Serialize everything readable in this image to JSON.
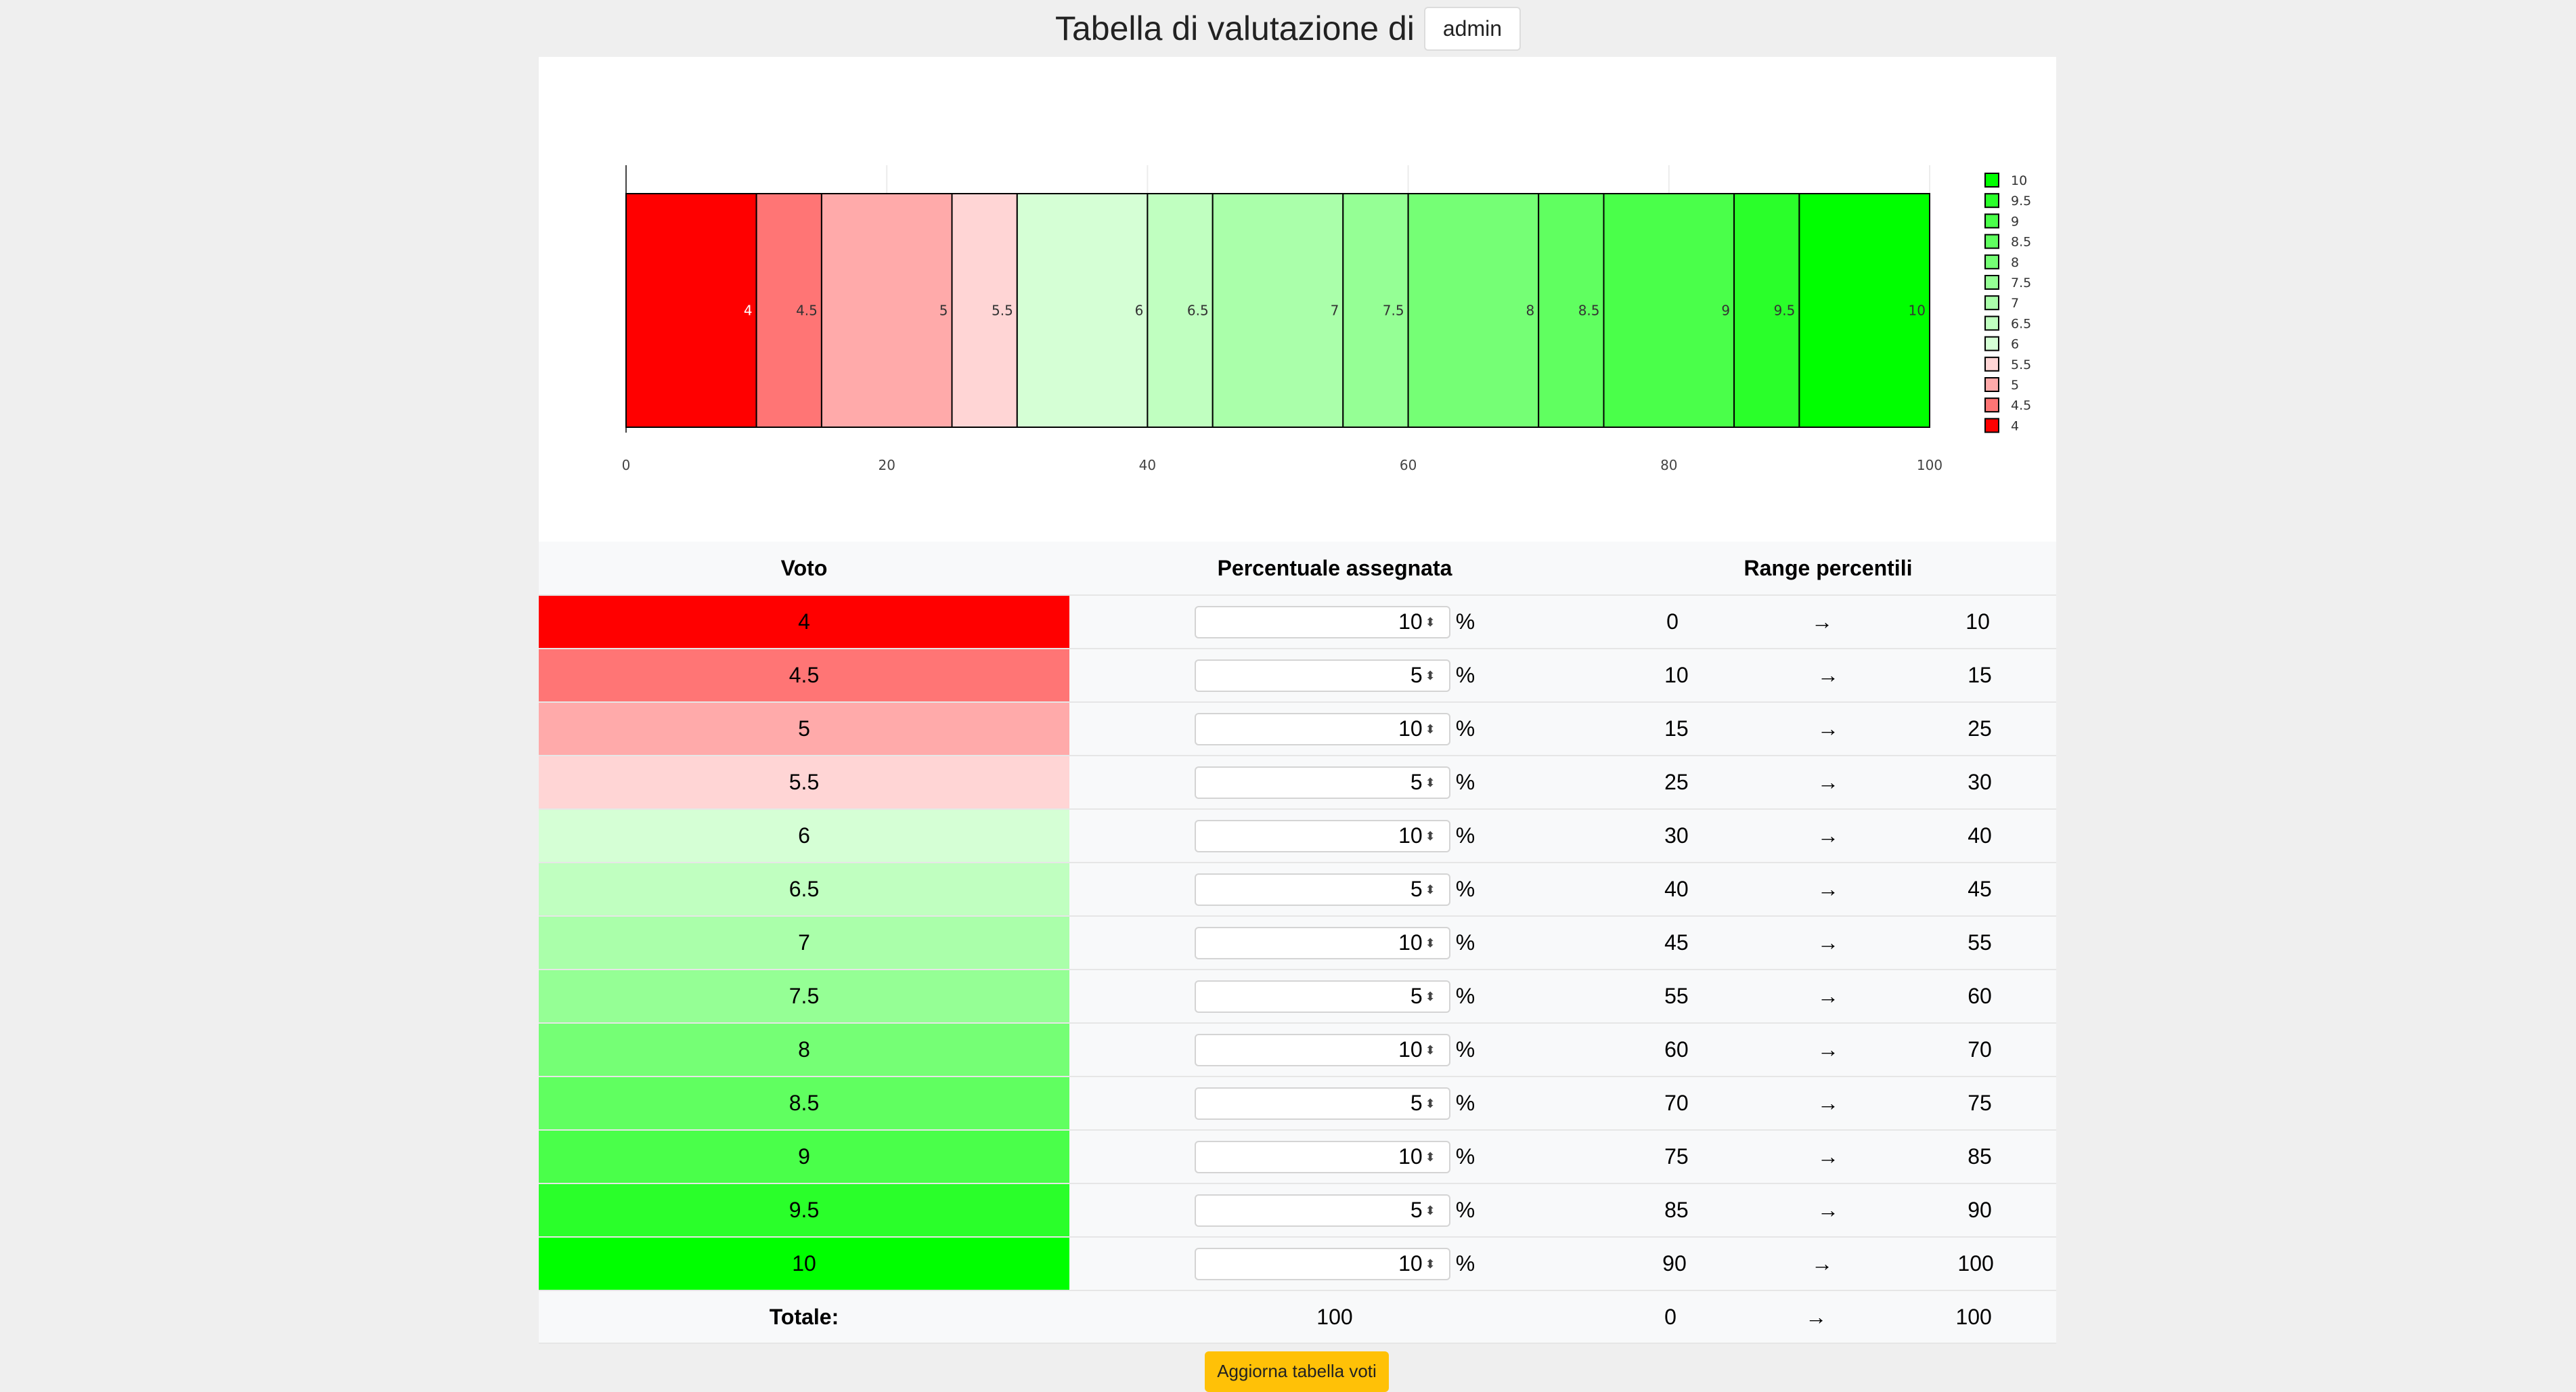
{
  "header": {
    "title": "Tabella di valutazione di",
    "user": "admin"
  },
  "chart_data": {
    "type": "bar",
    "orientation": "horizontal-stacked",
    "series": [
      {
        "name": "4",
        "value": 10,
        "color": "#ff0000"
      },
      {
        "name": "4.5",
        "value": 5,
        "color": "#ff7575"
      },
      {
        "name": "5",
        "value": 10,
        "color": "#ffaaaa"
      },
      {
        "name": "5.5",
        "value": 5,
        "color": "#ffd5d5"
      },
      {
        "name": "6",
        "value": 10,
        "color": "#d5ffd5"
      },
      {
        "name": "6.5",
        "value": 5,
        "color": "#c0ffc0"
      },
      {
        "name": "7",
        "value": 10,
        "color": "#aaffaa"
      },
      {
        "name": "7.5",
        "value": 5,
        "color": "#95ff95"
      },
      {
        "name": "8",
        "value": 10,
        "color": "#75ff75"
      },
      {
        "name": "8.5",
        "value": 5,
        "color": "#60ff60"
      },
      {
        "name": "9",
        "value": 10,
        "color": "#4aff4a"
      },
      {
        "name": "9.5",
        "value": 5,
        "color": "#2aff2a"
      },
      {
        "name": "10",
        "value": 10,
        "color": "#00ff00"
      }
    ],
    "xlim": [
      0,
      100
    ],
    "xticks": [
      "0",
      "20",
      "40",
      "60",
      "80",
      "100"
    ],
    "legend": "right",
    "grid": true
  },
  "table": {
    "headers": {
      "voto": "Voto",
      "percentuale": "Percentuale assegnata",
      "range": "Range percentili"
    },
    "arrow": "→",
    "percent_sign": "%",
    "rows": [
      {
        "voto": "4",
        "pct": "10",
        "from": "0",
        "to": "10",
        "color": "#ff0000"
      },
      {
        "voto": "4.5",
        "pct": "5",
        "from": "10",
        "to": "15",
        "color": "#ff7575"
      },
      {
        "voto": "5",
        "pct": "10",
        "from": "15",
        "to": "25",
        "color": "#ffaaaa"
      },
      {
        "voto": "5.5",
        "pct": "5",
        "from": "25",
        "to": "30",
        "color": "#ffd5d5"
      },
      {
        "voto": "6",
        "pct": "10",
        "from": "30",
        "to": "40",
        "color": "#d5ffd5"
      },
      {
        "voto": "6.5",
        "pct": "5",
        "from": "40",
        "to": "45",
        "color": "#c0ffc0"
      },
      {
        "voto": "7",
        "pct": "10",
        "from": "45",
        "to": "55",
        "color": "#aaffaa"
      },
      {
        "voto": "7.5",
        "pct": "5",
        "from": "55",
        "to": "60",
        "color": "#95ff95"
      },
      {
        "voto": "8",
        "pct": "10",
        "from": "60",
        "to": "70",
        "color": "#75ff75"
      },
      {
        "voto": "8.5",
        "pct": "5",
        "from": "70",
        "to": "75",
        "color": "#60ff60"
      },
      {
        "voto": "9",
        "pct": "10",
        "from": "75",
        "to": "85",
        "color": "#4aff4a"
      },
      {
        "voto": "9.5",
        "pct": "5",
        "from": "85",
        "to": "90",
        "color": "#2aff2a"
      },
      {
        "voto": "10",
        "pct": "10",
        "from": "90",
        "to": "100",
        "color": "#00ff00"
      }
    ],
    "total": {
      "label": "Totale:",
      "pct": "100",
      "from": "0",
      "to": "100"
    }
  },
  "button": {
    "label": "Aggiorna tabella voti"
  }
}
